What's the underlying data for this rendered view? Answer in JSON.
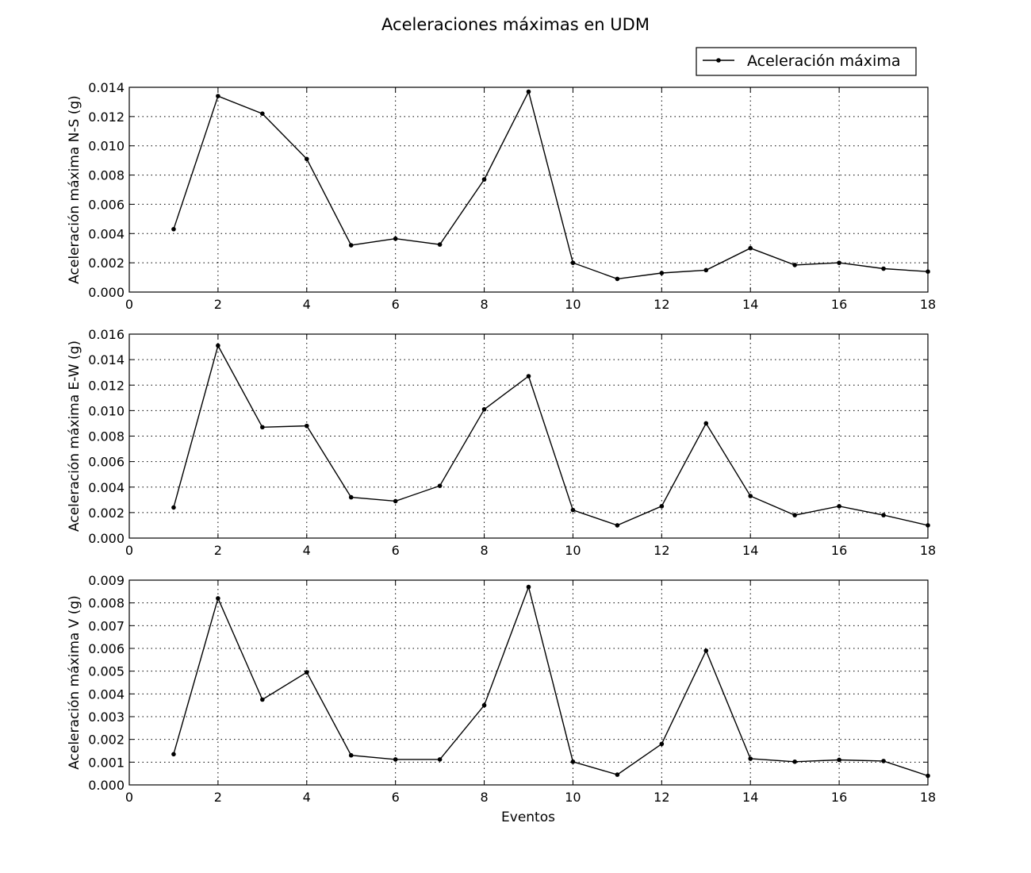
{
  "chart_data": {
    "title": "Aceleraciones máximas en UDM",
    "legend": {
      "label": "Aceleración máxima",
      "placement": "top-right"
    },
    "x": [
      1,
      2,
      3,
      4,
      5,
      6,
      7,
      8,
      9,
      10,
      11,
      12,
      13,
      14,
      15,
      16,
      17,
      18
    ],
    "xlabel": "Eventos",
    "subplots": [
      {
        "type": "line",
        "ylabel": "Aceleración máxima N-S (g)",
        "xlim": [
          0,
          18
        ],
        "ylim": [
          0,
          0.014
        ],
        "xticks": [
          0,
          2,
          4,
          6,
          8,
          10,
          12,
          14,
          16,
          18
        ],
        "yticks": [
          "0.000",
          "0.002",
          "0.004",
          "0.006",
          "0.008",
          "0.010",
          "0.012",
          "0.014"
        ],
        "values": [
          0.0043,
          0.0134,
          0.0122,
          0.0091,
          0.0032,
          0.00365,
          0.00325,
          0.0077,
          0.0137,
          0.002,
          0.0009,
          0.0013,
          0.0015,
          0.003,
          0.00185,
          0.002,
          0.0016,
          0.0014
        ],
        "grid": true
      },
      {
        "type": "line",
        "ylabel": "Aceleración máxima E-W (g)",
        "xlim": [
          0,
          18
        ],
        "ylim": [
          0,
          0.016
        ],
        "xticks": [
          0,
          2,
          4,
          6,
          8,
          10,
          12,
          14,
          16,
          18
        ],
        "yticks": [
          "0.000",
          "0.002",
          "0.004",
          "0.006",
          "0.008",
          "0.010",
          "0.012",
          "0.014",
          "0.016"
        ],
        "values": [
          0.0024,
          0.0151,
          0.0087,
          0.0088,
          0.0032,
          0.0029,
          0.0041,
          0.0101,
          0.0127,
          0.0022,
          0.001,
          0.0025,
          0.009,
          0.0033,
          0.0018,
          0.0025,
          0.0018,
          0.001
        ],
        "grid": true
      },
      {
        "type": "line",
        "ylabel": "Aceleración máxima V (g)",
        "xlim": [
          0,
          18
        ],
        "ylim": [
          0,
          0.009
        ],
        "xticks": [
          0,
          2,
          4,
          6,
          8,
          10,
          12,
          14,
          16,
          18
        ],
        "yticks": [
          "0.000",
          "0.001",
          "0.002",
          "0.003",
          "0.004",
          "0.005",
          "0.006",
          "0.007",
          "0.008",
          "0.009"
        ],
        "values": [
          0.00135,
          0.0082,
          0.00375,
          0.00495,
          0.0013,
          0.00112,
          0.00112,
          0.0035,
          0.0087,
          0.00102,
          0.00045,
          0.0018,
          0.0059,
          0.00115,
          0.00102,
          0.0011,
          0.00105,
          0.0004
        ],
        "grid": true
      }
    ]
  }
}
